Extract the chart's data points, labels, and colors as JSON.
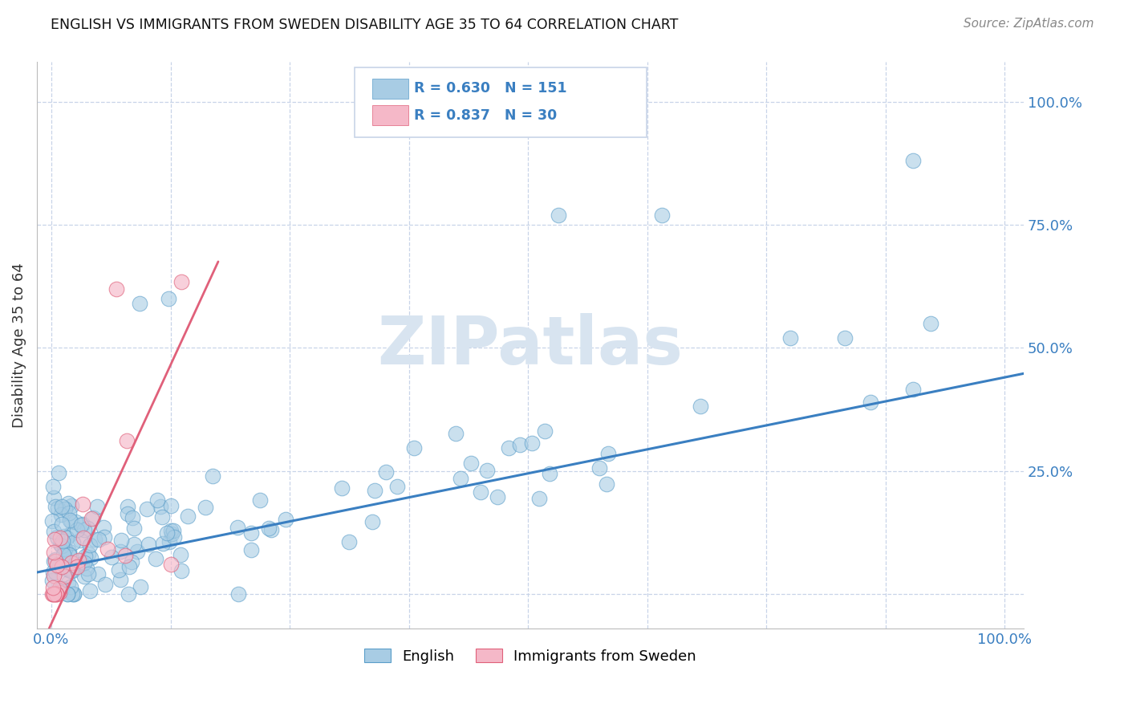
{
  "title": "ENGLISH VS IMMIGRANTS FROM SWEDEN DISABILITY AGE 35 TO 64 CORRELATION CHART",
  "source": "Source: ZipAtlas.com",
  "ylabel": "Disability Age 35 to 64",
  "blue_color": "#a8cce4",
  "blue_edge_color": "#5b9ec9",
  "pink_color": "#f5b8c8",
  "pink_edge_color": "#e0607a",
  "blue_line_color": "#3a7fc1",
  "pink_line_color": "#e0607a",
  "legend_text_color": "#3a7fc1",
  "background_color": "#ffffff",
  "grid_color": "#c8d4e8",
  "watermark_color": "#d8e4f0",
  "english_R": "0.630",
  "english_N": "151",
  "sweden_R": "0.837",
  "sweden_N": "30"
}
